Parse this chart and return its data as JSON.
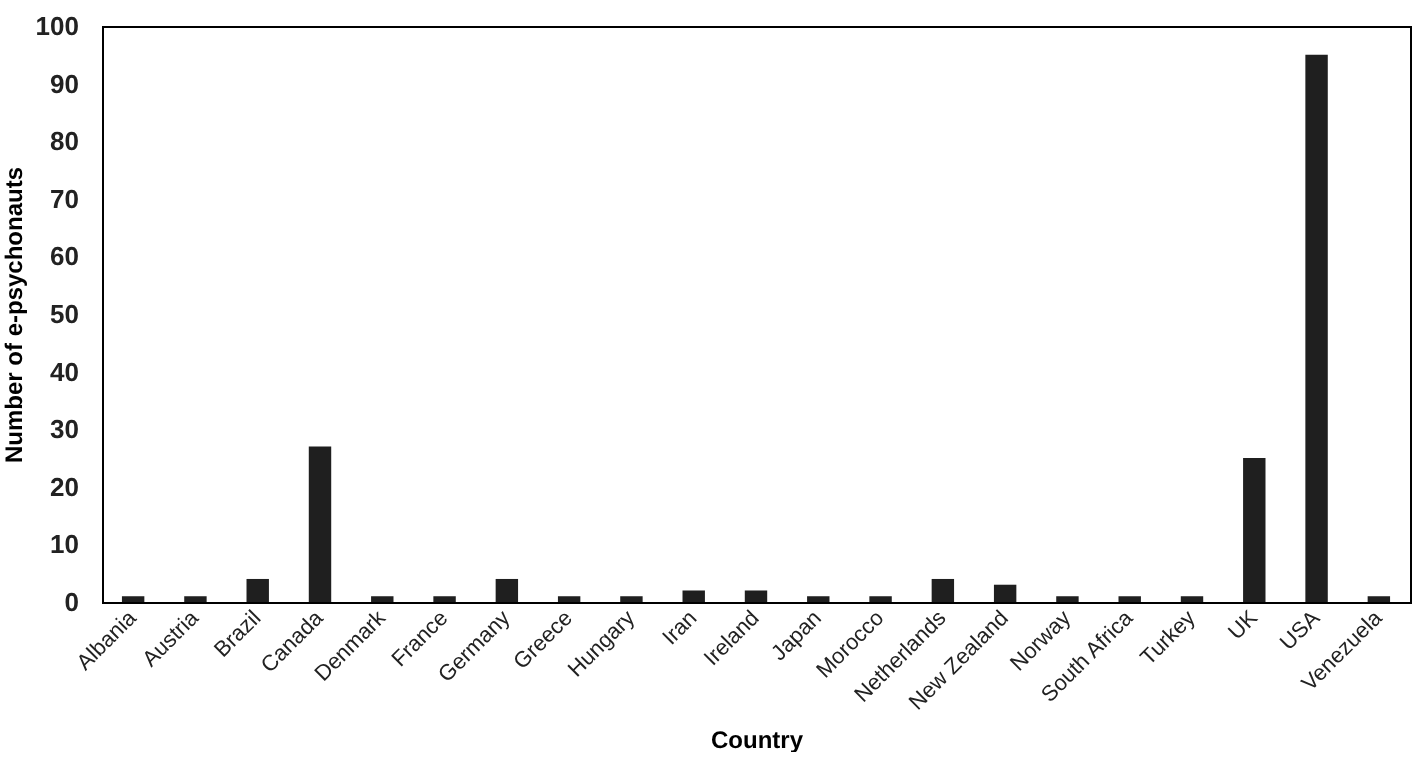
{
  "chart_data": {
    "type": "bar",
    "xlabel": "Country",
    "ylabel": "Number of e-psychonauts",
    "categories": [
      "Albania",
      "Austria",
      "Brazil",
      "Canada",
      "Denmark",
      "France",
      "Germany",
      "Greece",
      "Hungary",
      "Iran",
      "Ireland",
      "Japan",
      "Morocco",
      "Netherlands",
      "New Zealand",
      "Norway",
      "South Africa",
      "Turkey",
      "UK",
      "USA",
      "Venezuela"
    ],
    "values": [
      1,
      1,
      4,
      27,
      1,
      1,
      4,
      1,
      1,
      2,
      2,
      1,
      1,
      4,
      3,
      1,
      1,
      1,
      25,
      95,
      1
    ],
    "color": "#1f1f1f",
    "ylim": [
      0,
      100
    ],
    "yticks": [
      0,
      10,
      20,
      30,
      40,
      50,
      60,
      70,
      80,
      90,
      100
    ],
    "grid": false
  }
}
